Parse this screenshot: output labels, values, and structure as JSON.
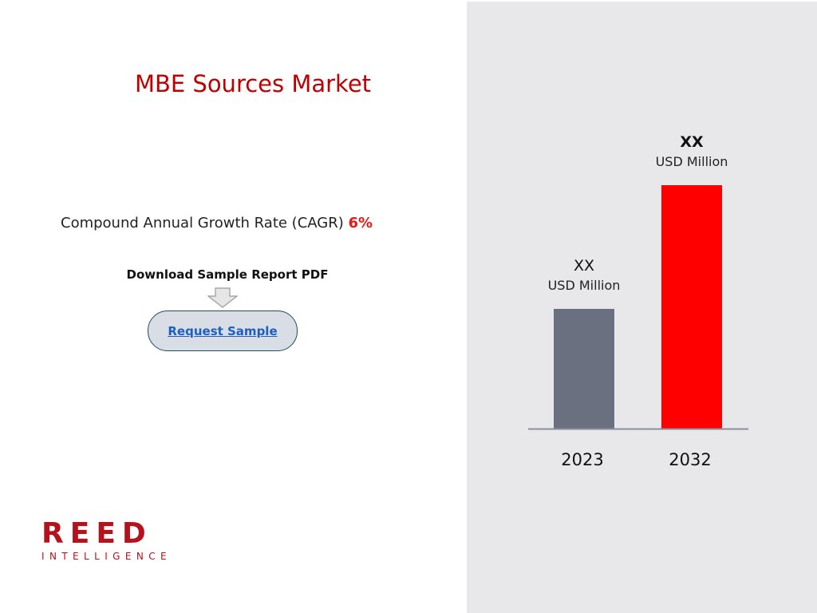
{
  "title": "MBE Sources Market",
  "cagr": {
    "label": "Compound Annual Growth Rate (CAGR)",
    "value": "6%"
  },
  "download": {
    "label": "Download Sample Report PDF",
    "button_label": "Request Sample"
  },
  "logo": {
    "main": "REED",
    "sub": "INTELLIGENCE"
  },
  "colors": {
    "title": "#c00000",
    "panel_bg": "#e8e8ea",
    "bar_2023": "#6a7080",
    "bar_2032": "#ff0000"
  },
  "chart_data": {
    "type": "bar",
    "categories": [
      "2023",
      "2032"
    ],
    "values": [
      150,
      305
    ],
    "value_labels": [
      {
        "value": "XX",
        "unit": "USD Million"
      },
      {
        "value": "XX",
        "unit": "USD Million"
      }
    ],
    "colors": [
      "#6a7080",
      "#ff0000"
    ],
    "ylim": [
      0,
      320
    ],
    "grid": false,
    "title": "",
    "xlabel": "",
    "ylabel": ""
  }
}
